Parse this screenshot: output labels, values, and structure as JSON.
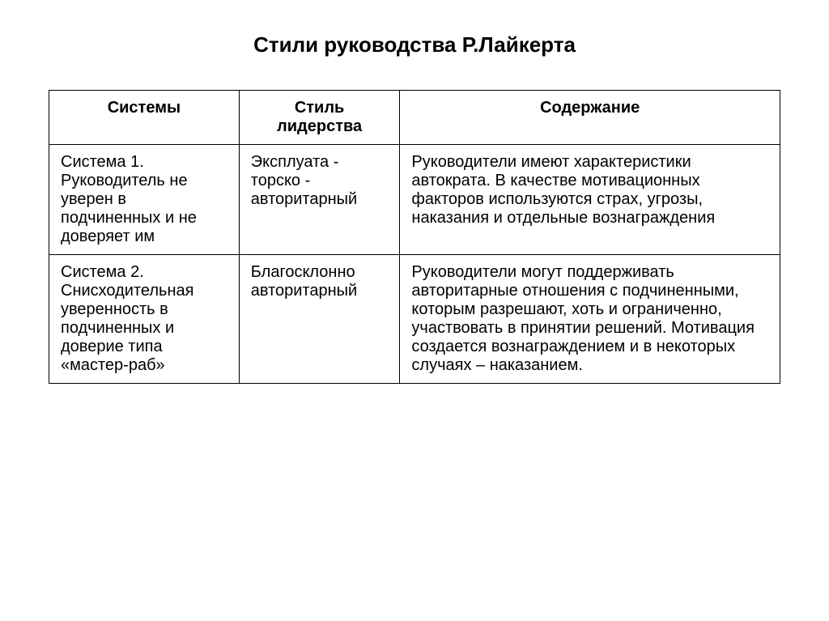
{
  "title_text": "Стили руководства Р.Лайкерта",
  "title_fontsize": "26px",
  "header_fontsize": "20px",
  "cell_fontsize": "20px",
  "text_color": "#000000",
  "border_color": "#000000",
  "background_color": "#ffffff",
  "table": {
    "columns": [
      "Системы",
      "Стиль лидерства",
      "Содержание"
    ],
    "column_widths_pct": [
      26,
      22,
      52
    ],
    "rows": [
      {
        "system": "Система 1. Руководитель не уверен в подчиненных и не доверяет им",
        "style": "Эксплуата - торско - авторитарный",
        "content": "Руководители имеют характеристики автократа. В качестве мотивационных факторов используются страх, угрозы, наказания и отдельные вознаграждения"
      },
      {
        "system": "Система 2. Снисходительная уверенность в подчиненных и доверие типа «мастер-раб»",
        "style": "Благосклонно авторитарный",
        "content": "Руководители могут поддерживать авторитарные отношения с подчиненными, которым разрешают, хоть и ограниченно, участвовать в принятии решений. Мотивация создается вознаграждением и в некоторых случаях – наказанием."
      }
    ]
  }
}
